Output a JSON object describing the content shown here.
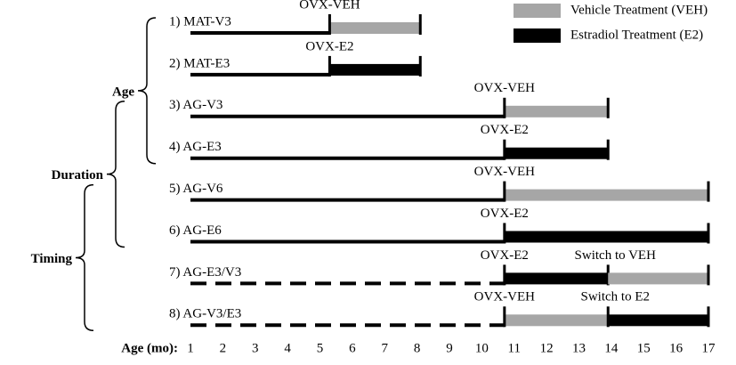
{
  "chart_data": {
    "type": "timeline",
    "xlabel": "Age (mo):",
    "xlim": [
      1,
      17
    ],
    "xticks": [
      1,
      2,
      3,
      4,
      5,
      6,
      7,
      8,
      9,
      10,
      11,
      12,
      13,
      14,
      15,
      16,
      17
    ],
    "legend": [
      {
        "name": "Vehicle Treatment (VEH)",
        "color": "#a6a6a6"
      },
      {
        "name": "Estradiol Treatment (E2)",
        "color": "#000000"
      }
    ],
    "brackets": [
      "Age",
      "Duration",
      "Timing"
    ],
    "rows": [
      {
        "label": "1) MAT-V3",
        "start": 1,
        "surgery": 5.3,
        "surgery_label": "OVX-VEH",
        "dashed": false,
        "segments": [
          {
            "start": 5.3,
            "end": 8.1,
            "color": "#a6a6a6"
          }
        ]
      },
      {
        "label": "2) MAT-E3",
        "start": 1,
        "surgery": 5.3,
        "surgery_label": "OVX-E2",
        "dashed": false,
        "segments": [
          {
            "start": 5.3,
            "end": 8.1,
            "color": "#000000"
          }
        ]
      },
      {
        "label": "3) AG-V3",
        "start": 1,
        "surgery": 10.7,
        "surgery_label": "OVX-VEH",
        "dashed": false,
        "segments": [
          {
            "start": 10.7,
            "end": 13.9,
            "color": "#a6a6a6"
          }
        ]
      },
      {
        "label": "4) AG-E3",
        "start": 1,
        "surgery": 10.7,
        "surgery_label": "OVX-E2",
        "dashed": false,
        "segments": [
          {
            "start": 10.7,
            "end": 13.9,
            "color": "#000000"
          }
        ]
      },
      {
        "label": "5) AG-V6",
        "start": 1,
        "surgery": 10.7,
        "surgery_label": "OVX-VEH",
        "dashed": false,
        "segments": [
          {
            "start": 10.7,
            "end": 17,
            "color": "#a6a6a6"
          }
        ]
      },
      {
        "label": "6) AG-E6",
        "start": 1,
        "surgery": 10.7,
        "surgery_label": "OVX-E2",
        "dashed": false,
        "segments": [
          {
            "start": 10.7,
            "end": 17,
            "color": "#000000"
          }
        ]
      },
      {
        "label": "7) AG-E3/V3",
        "start": 1,
        "surgery": 10.7,
        "surgery_label": "OVX-E2",
        "dashed": true,
        "switch_label": "Switch to VEH",
        "segments": [
          {
            "start": 10.7,
            "end": 13.9,
            "color": "#000000"
          },
          {
            "start": 13.9,
            "end": 17,
            "color": "#a6a6a6"
          }
        ]
      },
      {
        "label": "8) AG-V3/E3",
        "start": 1,
        "surgery": 10.7,
        "surgery_label": "OVX-VEH",
        "dashed": true,
        "switch_label": "Switch to E2",
        "segments": [
          {
            "start": 10.7,
            "end": 13.9,
            "color": "#a6a6a6"
          },
          {
            "start": 13.9,
            "end": 17,
            "color": "#000000"
          }
        ]
      }
    ]
  }
}
